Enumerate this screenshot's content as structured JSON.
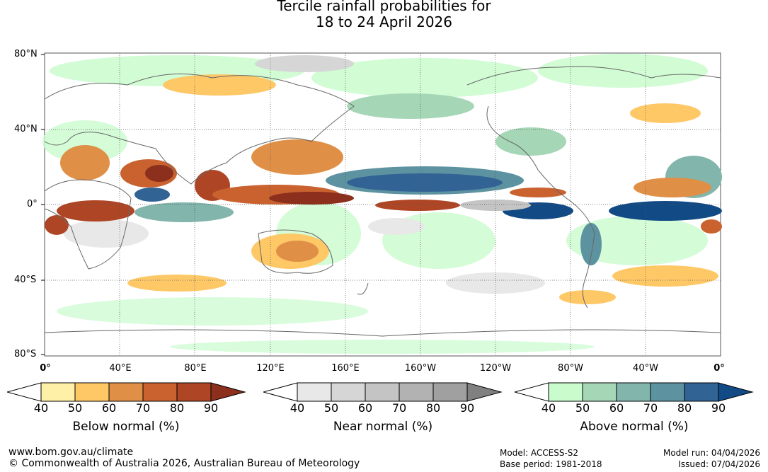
{
  "title": {
    "line1": "Tercile rainfall probabilities for",
    "line2": "18 to 24 April 2026"
  },
  "map": {
    "lat_labels": [
      "80°N",
      "40°N",
      "0°",
      "40°S",
      "80°S"
    ],
    "lon_labels": [
      "0°",
      "40°E",
      "80°E",
      "120°E",
      "160°E",
      "160°W",
      "120°W",
      "80°W",
      "40°W",
      "0°"
    ]
  },
  "legends": [
    {
      "title": "Below normal (%)",
      "ticks": [
        "40",
        "50",
        "60",
        "70",
        "80",
        "90"
      ],
      "colors": [
        "#fff0a8",
        "#fec867",
        "#e08f46",
        "#c9622f",
        "#ae4626",
        "#8c2f1c"
      ]
    },
    {
      "title": "Near normal (%)",
      "ticks": [
        "40",
        "50",
        "60",
        "70",
        "80",
        "90"
      ],
      "colors": [
        "#e8e8e8",
        "#d6d6d6",
        "#c4c4c4",
        "#b2b2b2",
        "#a0a0a0",
        "#808080"
      ]
    },
    {
      "title": "Above normal (%)",
      "ticks": [
        "40",
        "50",
        "60",
        "70",
        "80",
        "90"
      ],
      "colors": [
        "#c9fbcd",
        "#a5d6b5",
        "#82b5ab",
        "#5d93a1",
        "#316395",
        "#114a85"
      ]
    }
  ],
  "footer": {
    "url": "www.bom.gov.au/climate",
    "copyright": "© Commonwealth of Australia 2026, Australian Bureau of Meteorology",
    "model": "Model: ACCESS-S2",
    "base_period": "Base period: 1981-2018",
    "model_run": "Model run: 04/04/2026",
    "issued": "Issued: 07/04/2026"
  }
}
